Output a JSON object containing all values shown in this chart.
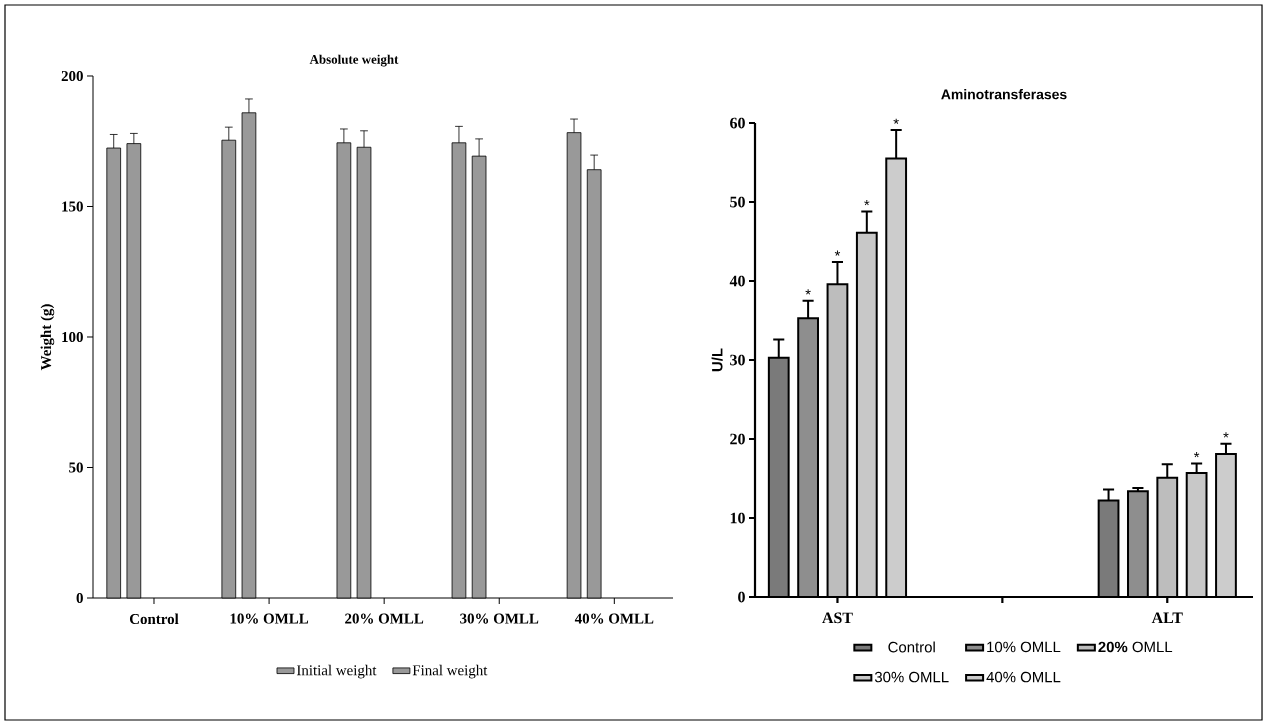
{
  "chart_data": [
    {
      "type": "bar",
      "title": "Absolute weight",
      "ylabel": "Weight (g)",
      "categories": [
        "Control",
        "10% OMLL",
        "20% OMLL",
        "30% OMLL",
        "40% OMLL"
      ],
      "series": [
        {
          "name": "Initial weight",
          "color": "#999999",
          "values": [
            172.4,
            175.4,
            174.4,
            174.4,
            178.3
          ],
          "errors": [
            [
              172.4,
              177.6
            ],
            [
              175.4,
              180.4
            ],
            [
              174.4,
              179.7
            ],
            [
              174.4,
              180.7
            ],
            [
              178.3,
              183.5
            ]
          ]
        },
        {
          "name": "Final weight",
          "color": "#999999",
          "values": [
            174.1,
            185.9,
            172.7,
            169.3,
            164.1
          ],
          "errors": [
            [
              174.1,
              178.0
            ],
            [
              185.9,
              191.2
            ],
            [
              172.7,
              179.0
            ],
            [
              169.3,
              175.9
            ],
            [
              164.1,
              169.7
            ]
          ]
        }
      ],
      "ylim": [
        0,
        200
      ],
      "yticks": [
        0,
        50,
        100,
        150,
        200
      ],
      "legend": "bottom"
    },
    {
      "type": "bar",
      "title": "Aminotransferases",
      "ylabel": "U/L",
      "categories": [
        "AST",
        null,
        "ALT"
      ],
      "series": [
        {
          "name": "Control",
          "color": "#7a7a7a",
          "values": [
            30.3,
            null,
            12.2
          ],
          "errors": [
            [
              30.3,
              32.6
            ],
            null,
            [
              12.2,
              13.6
            ]
          ]
        },
        {
          "name": "10% OMLL",
          "color": "#8e8e8e",
          "values": [
            35.3,
            null,
            13.4
          ],
          "errors": [
            [
              35.3,
              37.5
            ],
            null,
            [
              13.4,
              13.8
            ]
          ]
        },
        {
          "name": "**20%** OMLL",
          "color": "#bdbdbd",
          "values": [
            39.6,
            null,
            15.1
          ],
          "errors": [
            [
              39.6,
              42.4
            ],
            null,
            [
              15.1,
              16.8
            ]
          ]
        },
        {
          "name": "30% OMLL",
          "color": "#c8c8c8",
          "values": [
            46.1,
            null,
            15.7
          ],
          "errors": [
            [
              46.1,
              48.8
            ],
            null,
            [
              15.7,
              16.9
            ]
          ]
        },
        {
          "name": "40% OMLL",
          "color": "#cccccc",
          "values": [
            55.5,
            null,
            18.1
          ],
          "errors": [
            [
              55.5,
              59.1
            ],
            null,
            [
              18.1,
              19.4
            ]
          ]
        }
      ],
      "ylim": [
        0,
        60
      ],
      "yticks": [
        0,
        10,
        20,
        30,
        40,
        50,
        60
      ],
      "legend": "bottom",
      "annotations": [
        "*",
        "*",
        "*",
        "*",
        "*",
        "*"
      ]
    }
  ]
}
